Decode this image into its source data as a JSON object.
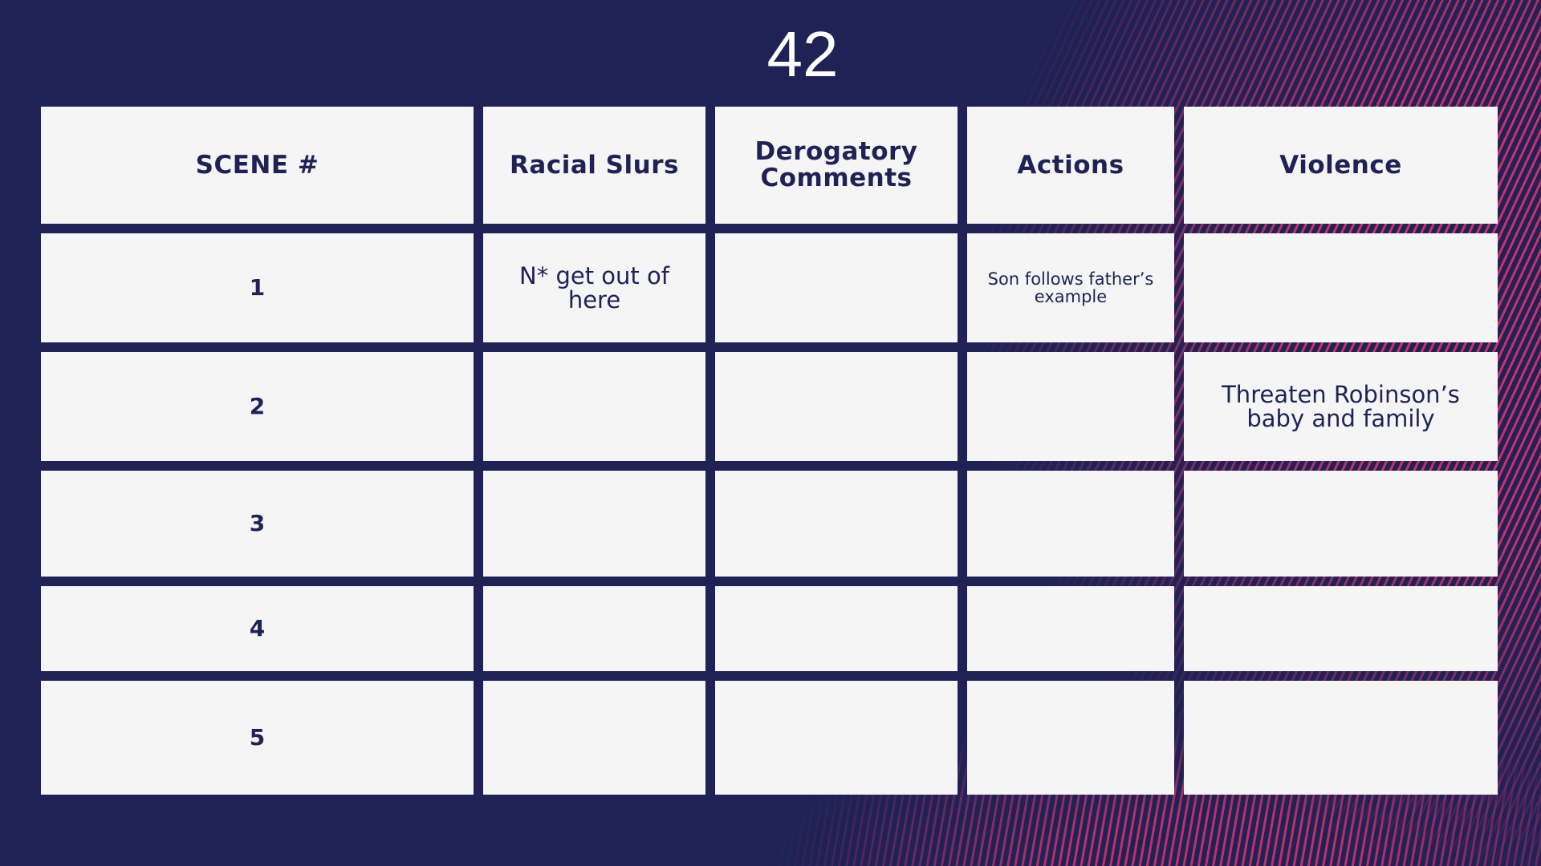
{
  "title": "42",
  "colors": {
    "background": "#1f2255",
    "accent": "#e8336a",
    "cell": "#f5f5f5"
  },
  "table": {
    "headers": [
      "SCENE #",
      "Racial Slurs",
      "Derogatory Comments",
      "Actions",
      "Violence"
    ],
    "rows": [
      [
        "1",
        "N* get out of here",
        "",
        "Son follows father’s example",
        ""
      ],
      [
        "2",
        "",
        "",
        "",
        "Threaten Robinson’s baby and family"
      ],
      [
        "3",
        "",
        "",
        "",
        ""
      ],
      [
        "4",
        "",
        "",
        "",
        ""
      ],
      [
        "5",
        "",
        "",
        "",
        ""
      ]
    ]
  }
}
